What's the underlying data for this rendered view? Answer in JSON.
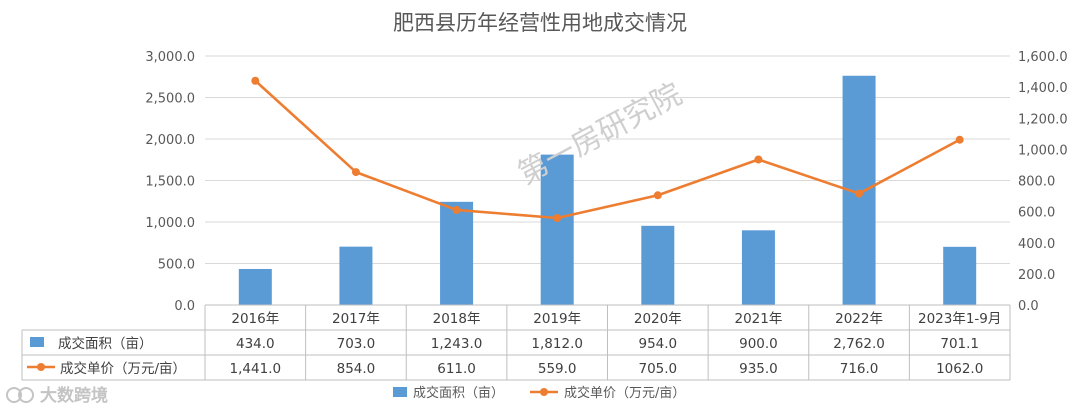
{
  "chart_data": {
    "type": "bar+line",
    "title": "肥西县历年经营性用地成交情况",
    "categories": [
      "2016年",
      "2017年",
      "2018年",
      "2019年",
      "2020年",
      "2021年",
      "2022年",
      "2023年1-9月"
    ],
    "series": [
      {
        "name": "成交面积（亩）",
        "type": "bar",
        "axis": "left",
        "color": "#5b9bd5",
        "values": [
          434.0,
          703.0,
          1243.0,
          1812.0,
          954.0,
          900.0,
          2762.0,
          701.1
        ],
        "labels": [
          "434.0",
          "703.0",
          "1,243.0",
          "1,812.0",
          "954.0",
          "900.0",
          "2,762.0",
          "701.1"
        ]
      },
      {
        "name": "成交单价（万元/亩）",
        "type": "line",
        "axis": "right",
        "color": "#ed7d31",
        "values": [
          1441.0,
          854.0,
          611.0,
          559.0,
          705.0,
          935.0,
          716.0,
          1062.0
        ],
        "labels": [
          "1,441.0",
          "854.0",
          "611.0",
          "559.0",
          "705.0",
          "935.0",
          "716.0",
          "1062.0"
        ]
      }
    ],
    "y_left": {
      "min": 0,
      "max": 3000,
      "ticks": [
        "0.0",
        "500.0",
        "1,000.0",
        "1,500.0",
        "2,000.0",
        "2,500.0",
        "3,000.0"
      ]
    },
    "y_right": {
      "min": 0,
      "max": 1600,
      "ticks": [
        "0.0",
        "200.0",
        "400.0",
        "600.0",
        "800.0",
        "1,000.0",
        "1,200.0",
        "1,400.0",
        "1,600.0"
      ]
    },
    "grid": true,
    "legend": "bottom",
    "data_table": true
  },
  "watermark": "第一房研究院",
  "brand": "大数跨境"
}
